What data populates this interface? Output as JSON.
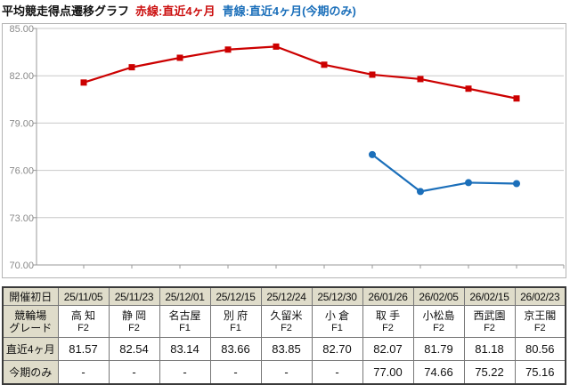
{
  "page_title": {
    "main": "平均競走得点遷移グラフ",
    "legend_red": "赤線:直近4ヶ月",
    "legend_blue": "青線:直近4ヶ月(今期のみ)"
  },
  "colors": {
    "red_line": "#cc0000",
    "blue_line": "#1b6fba",
    "title_red": "#cc1111",
    "title_blue": "#1b6fba",
    "grid": "#c8c8c8",
    "axis": "#999999",
    "axis_label": "#8a8a8a",
    "table_header_bg": "#dfdcca",
    "table_border": "#777777",
    "table_outer_border": "#3a3a3a"
  },
  "chart_data": {
    "type": "line",
    "title": "平均競走得点遷移グラフ",
    "categories": [
      "25/11/05",
      "25/11/23",
      "25/12/01",
      "25/12/15",
      "25/12/24",
      "25/12/30",
      "26/01/26",
      "26/02/05",
      "26/02/15",
      "26/02/23"
    ],
    "series": [
      {
        "name": "直近4ヶ月",
        "color": "#cc0000",
        "marker": "square",
        "values": [
          81.57,
          82.54,
          83.14,
          83.66,
          83.85,
          82.7,
          82.07,
          81.79,
          81.18,
          80.56
        ]
      },
      {
        "name": "直近4ヶ月(今期のみ)",
        "color": "#1b6fba",
        "marker": "circle",
        "values": [
          null,
          null,
          null,
          null,
          null,
          null,
          77.0,
          74.66,
          75.22,
          75.16
        ]
      }
    ],
    "ylim": [
      70,
      85
    ],
    "yticks": [
      85,
      82,
      79,
      76,
      73,
      70
    ],
    "ytick_decimals": 2,
    "grid": true,
    "legend_position": "in-title"
  },
  "table": {
    "rows": [
      {
        "key": "dates",
        "header_lines": [
          "開催初日"
        ],
        "cells": [
          "25/11/05",
          "25/11/23",
          "25/12/01",
          "25/12/15",
          "25/12/24",
          "25/12/30",
          "26/01/26",
          "26/02/05",
          "26/02/15",
          "26/02/23"
        ]
      },
      {
        "key": "venue",
        "header_lines": [
          "競輪場",
          "グレード"
        ],
        "cells": [
          [
            "高 知",
            "F2"
          ],
          [
            "静 岡",
            "F2"
          ],
          [
            "名古屋",
            "F1"
          ],
          [
            "別 府",
            "F1"
          ],
          [
            "久留米",
            "F2"
          ],
          [
            "小 倉",
            "F1"
          ],
          [
            "取 手",
            "F2"
          ],
          [
            "小松島",
            "F2"
          ],
          [
            "西武園",
            "F2"
          ],
          [
            "京王閣",
            "F2"
          ]
        ]
      },
      {
        "key": "recent4",
        "header_lines": [
          "直近4ヶ月"
        ],
        "cells": [
          "81.57",
          "82.54",
          "83.14",
          "83.66",
          "83.85",
          "82.70",
          "82.07",
          "81.79",
          "81.18",
          "80.56"
        ]
      },
      {
        "key": "current",
        "header_lines": [
          "今期のみ"
        ],
        "cells": [
          "-",
          "-",
          "-",
          "-",
          "-",
          "-",
          "77.00",
          "74.66",
          "75.22",
          "75.16"
        ]
      }
    ]
  }
}
